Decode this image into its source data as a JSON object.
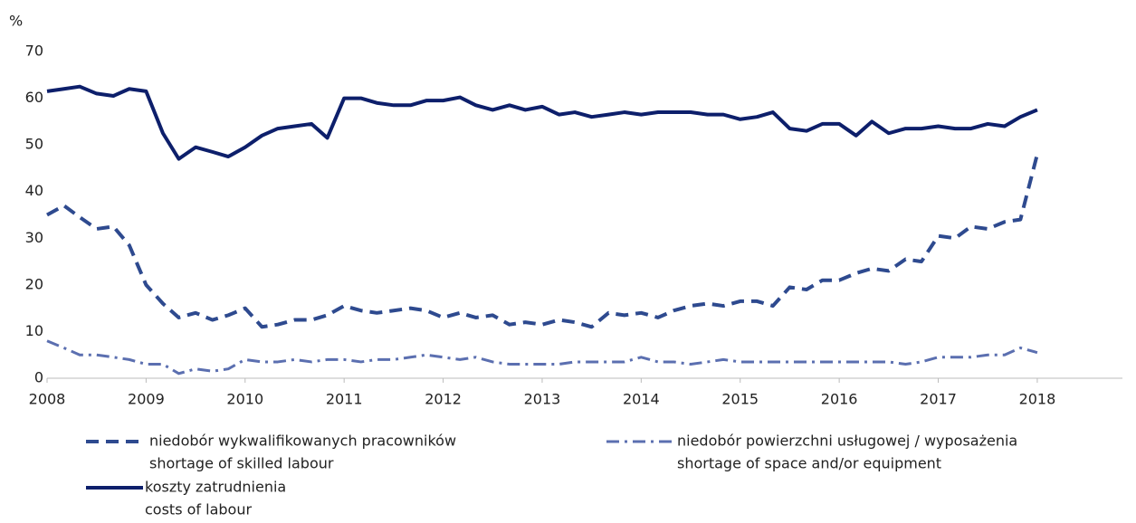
{
  "chart_data": {
    "type": "line",
    "y_label": "%",
    "x": [
      2008,
      2008.17,
      2008.33,
      2008.5,
      2008.67,
      2008.83,
      2009,
      2009.17,
      2009.33,
      2009.5,
      2009.67,
      2009.83,
      2010,
      2010.17,
      2010.33,
      2010.5,
      2010.67,
      2010.83,
      2011,
      2011.17,
      2011.33,
      2011.5,
      2011.67,
      2011.83,
      2012,
      2012.17,
      2012.33,
      2012.5,
      2012.67,
      2012.83,
      2013,
      2013.17,
      2013.33,
      2013.5,
      2013.67,
      2013.83,
      2014,
      2014.17,
      2014.33,
      2014.5,
      2014.67,
      2014.83,
      2015,
      2015.17,
      2015.33,
      2015.5,
      2015.67,
      2015.83,
      2016,
      2016.17,
      2016.33,
      2016.5,
      2016.67,
      2016.83,
      2017,
      2017.17,
      2017.33,
      2017.5,
      2017.67,
      2017.83,
      2018
    ],
    "series": [
      {
        "name": "niedobór wykwalifikowanych pracowników",
        "name_en": "shortage of skilled labour",
        "color": "#2e4a8f",
        "dash": "14 8",
        "values": [
          35,
          37,
          34.5,
          32,
          32.5,
          28.5,
          20,
          16,
          13,
          14,
          12.5,
          13.5,
          15,
          11,
          11.5,
          12.5,
          12.5,
          13.5,
          15.5,
          14.5,
          14,
          14.5,
          15,
          14.5,
          13,
          14,
          13,
          13.5,
          11.5,
          12,
          11.5,
          12.5,
          12,
          11,
          14,
          13.5,
          14,
          13,
          14.5,
          15.5,
          16,
          15.5,
          16.5,
          16.5,
          15.5,
          19.5,
          19,
          21,
          21,
          22.5,
          23.5,
          23,
          25.5,
          25,
          30.5,
          30,
          32.5,
          32,
          33.5,
          34,
          48
        ]
      },
      {
        "name": "niedobór powierzchni usługowej / wyposażenia",
        "name_en": "shortage of space and/or equipment",
        "color": "#5b6fb0",
        "dash": "14 6 3 6",
        "values": [
          8,
          6.5,
          5,
          5,
          4.5,
          4,
          3,
          3,
          1,
          2,
          1.5,
          2,
          4,
          3.5,
          3.5,
          4,
          3.5,
          4,
          4,
          3.5,
          4,
          4,
          4.5,
          5,
          4.5,
          4,
          4.5,
          3.5,
          3,
          3,
          3,
          3,
          3.5,
          3.5,
          3.5,
          3.5,
          4.5,
          3.5,
          3.5,
          3,
          3.5,
          4,
          3.5,
          3.5,
          3.5,
          3.5,
          3.5,
          3.5,
          3.5,
          3.5,
          3.5,
          3.5,
          3,
          3.5,
          4.5,
          4.5,
          4.5,
          5,
          5,
          6.5,
          5.5
        ]
      },
      {
        "name": "koszty zatrudnienia",
        "name_en": "costs of labour",
        "color": "#0d1f6b",
        "dash": "none",
        "values": [
          61.5,
          62,
          62.5,
          61,
          60.5,
          62,
          61.5,
          52.5,
          47,
          49.5,
          48.5,
          47.5,
          49.5,
          52,
          53.5,
          54,
          54.5,
          51.5,
          60,
          60,
          59,
          58.5,
          58.5,
          59.5,
          59.5,
          60.2,
          58.5,
          57.5,
          58.5,
          57.5,
          58.2,
          56.5,
          57,
          56,
          56.5,
          57,
          56.5,
          57,
          57,
          57,
          56.5,
          56.5,
          55.5,
          56,
          57,
          53.5,
          53,
          54.5,
          54.5,
          52,
          55,
          52.5,
          53.5,
          53.5,
          54,
          53.5,
          53.5,
          54.5,
          54,
          56,
          57.5
        ]
      }
    ],
    "xlim": [
      2008,
      2018.86
    ],
    "xticks": [
      2008,
      2009,
      2010,
      2011,
      2012,
      2013,
      2014,
      2015,
      2016,
      2017,
      2018
    ],
    "ylim": [
      0,
      70
    ],
    "yticks": [
      0,
      10,
      20,
      30,
      40,
      50,
      60,
      70
    ]
  }
}
